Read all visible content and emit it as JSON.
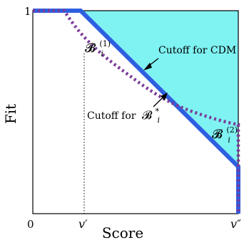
{
  "axes": {
    "x_label": "Score",
    "y_label": "Fit",
    "origin_tick": "0",
    "y_top_tick": "1",
    "x_tick_v_prime": "v′",
    "x_tick_v_double_prime": "v″"
  },
  "annotations": {
    "cdm_label": "Cutoff for CDM",
    "bi_star_label_prefix": "Cutoff for",
    "bi_star_math": "𝓑",
    "bi_star_sub": "i",
    "bi_star_sup": "*",
    "b1_math": "𝓑",
    "b1_sub": "i",
    "b1_sup": "(1)",
    "b2_math": "𝓑",
    "b2_sub": "i",
    "b2_sup": "(2)"
  },
  "colors": {
    "cyan_region": "#7ff2f2",
    "cdm_line": "#2e5fe0",
    "dotted_curve": "#7b3b9a",
    "axes": "#000000"
  }
}
